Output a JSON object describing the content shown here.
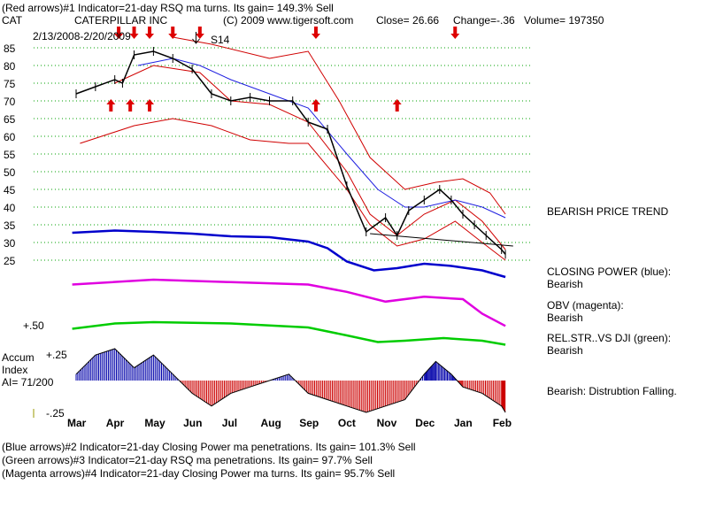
{
  "header": {
    "line1": "(Red arrows)#1 Indicator=21-day RSQ ma turns. Its gain= 149.3% Sell",
    "ticker": "CAT",
    "company": "CATERPILLAR INC",
    "copyright": "(C) 2009 www.tigersoft.com",
    "close": "Close=  26.66",
    "change": "Change=-.36",
    "volume": "Volume= 197350",
    "date_range": "2/13/2008-2/20/2009",
    "signal": "S14"
  },
  "annotations": {
    "trend": "BEARISH PRICE TREND",
    "cp_title": "CLOSING POWER (blue):",
    "cp_value": "Bearish",
    "obv_title": "OBV (magenta):",
    "obv_value": "Bearish",
    "rs_title": "REL.STR..VS DJI (green):",
    "rs_value": "Bearish",
    "accum_note": "Bearish:  Distrubtion Falling.",
    "plus50": "+.50",
    "accum_title": "Accum",
    "accum_index": "Index",
    "ai": "AI= 71/200",
    "plus25": "+.25",
    "minus25": "-.25"
  },
  "footer": {
    "line2": "(Blue arrows)#2 Indicator=21-day Closing Power ma penetrations. Its gain= 101.3% Sell",
    "line3": "(Green arrows)#3 Indicator=21-day RSQ ma penetrations. Its gain= 97.7% Sell",
    "line4": "(Magenta arrows)#4 Indicator=21-day Closing Power ma turns. Its gain= 95.7% Sell"
  },
  "colors": {
    "price": "#000000",
    "ma": "#2020e0",
    "band": "#d00000",
    "closing_power": "#0000cc",
    "obv": "#e000e0",
    "rel_strength": "#00cc00",
    "accum_pos": "#0000aa",
    "accum_neg": "#cc0000",
    "arrow": "#dd0000",
    "grid": "#00a000"
  },
  "chart_data": {
    "type": "line",
    "y_ticks": [
      85,
      80,
      75,
      70,
      65,
      60,
      55,
      50,
      45,
      40,
      35,
      30,
      25
    ],
    "ylim": [
      25,
      85
    ],
    "months": [
      "Mar",
      "Apr",
      "May",
      "Jun",
      "Jul",
      "Aug",
      "Sep",
      "Oct",
      "Nov",
      "Dec",
      "Jan",
      "Feb"
    ],
    "price_close": [
      {
        "m": 0.0,
        "v": 72
      },
      {
        "m": 0.5,
        "v": 74
      },
      {
        "m": 1.0,
        "v": 76
      },
      {
        "m": 1.2,
        "v": 75
      },
      {
        "m": 1.5,
        "v": 83
      },
      {
        "m": 2.0,
        "v": 84
      },
      {
        "m": 2.5,
        "v": 82
      },
      {
        "m": 3.0,
        "v": 79
      },
      {
        "m": 3.5,
        "v": 72
      },
      {
        "m": 4.0,
        "v": 70
      },
      {
        "m": 4.5,
        "v": 71
      },
      {
        "m": 5.0,
        "v": 70
      },
      {
        "m": 5.6,
        "v": 70
      },
      {
        "m": 6.0,
        "v": 64
      },
      {
        "m": 6.5,
        "v": 62
      },
      {
        "m": 7.0,
        "v": 46
      },
      {
        "m": 7.5,
        "v": 33
      },
      {
        "m": 8.0,
        "v": 37
      },
      {
        "m": 8.3,
        "v": 32
      },
      {
        "m": 8.6,
        "v": 39
      },
      {
        "m": 9.0,
        "v": 42
      },
      {
        "m": 9.4,
        "v": 45
      },
      {
        "m": 9.7,
        "v": 42
      },
      {
        "m": 10.0,
        "v": 38
      },
      {
        "m": 10.3,
        "v": 35
      },
      {
        "m": 10.6,
        "v": 32
      },
      {
        "m": 11.0,
        "v": 28
      },
      {
        "m": 11.1,
        "v": 26.66
      }
    ],
    "ma_21": [
      {
        "m": 1.6,
        "v": 80
      },
      {
        "m": 2.5,
        "v": 82
      },
      {
        "m": 3.2,
        "v": 80
      },
      {
        "m": 4.0,
        "v": 76
      },
      {
        "m": 5.0,
        "v": 72
      },
      {
        "m": 6.0,
        "v": 68
      },
      {
        "m": 7.0,
        "v": 55
      },
      {
        "m": 7.8,
        "v": 45
      },
      {
        "m": 8.5,
        "v": 40
      },
      {
        "m": 9.0,
        "v": 40
      },
      {
        "m": 9.8,
        "v": 42
      },
      {
        "m": 10.5,
        "v": 40
      },
      {
        "m": 11.1,
        "v": 37
      }
    ],
    "upper_band": [
      {
        "m": 2.5,
        "v": 88
      },
      {
        "m": 3.5,
        "v": 86
      },
      {
        "m": 5.0,
        "v": 82
      },
      {
        "m": 6.0,
        "v": 84
      },
      {
        "m": 6.8,
        "v": 70
      },
      {
        "m": 7.6,
        "v": 54
      },
      {
        "m": 8.5,
        "v": 45
      },
      {
        "m": 9.3,
        "v": 47
      },
      {
        "m": 10.0,
        "v": 48
      },
      {
        "m": 10.7,
        "v": 44
      },
      {
        "m": 11.1,
        "v": 38
      }
    ],
    "lower_band": [
      {
        "m": 0.1,
        "v": 58
      },
      {
        "m": 1.5,
        "v": 63
      },
      {
        "m": 2.5,
        "v": 65
      },
      {
        "m": 3.5,
        "v": 63
      },
      {
        "m": 4.5,
        "v": 59
      },
      {
        "m": 5.5,
        "v": 58
      },
      {
        "m": 6.0,
        "v": 58
      },
      {
        "m": 7.0,
        "v": 45
      },
      {
        "m": 7.6,
        "v": 35
      },
      {
        "m": 8.3,
        "v": 29
      },
      {
        "m": 9.0,
        "v": 31
      },
      {
        "m": 9.8,
        "v": 36
      },
      {
        "m": 10.5,
        "v": 30
      },
      {
        "m": 11.1,
        "v": 25
      }
    ],
    "inner_band": [
      {
        "m": 1.0,
        "v": 75
      },
      {
        "m": 2.0,
        "v": 80
      },
      {
        "m": 3.2,
        "v": 78
      },
      {
        "m": 4.0,
        "v": 70
      },
      {
        "m": 5.0,
        "v": 69
      },
      {
        "m": 6.0,
        "v": 64
      },
      {
        "m": 7.0,
        "v": 50
      },
      {
        "m": 7.6,
        "v": 38
      },
      {
        "m": 8.3,
        "v": 32
      },
      {
        "m": 9.0,
        "v": 38
      },
      {
        "m": 9.8,
        "v": 42
      },
      {
        "m": 10.5,
        "v": 36
      },
      {
        "m": 11.1,
        "v": 28
      }
    ],
    "trend_line": [
      {
        "m": 7.6,
        "v": 32.5
      },
      {
        "m": 11.3,
        "v": 29
      }
    ],
    "closing_power": [
      {
        "m": -0.1,
        "v": 0.9
      },
      {
        "m": 1.0,
        "v": 0.95
      },
      {
        "m": 2.0,
        "v": 0.92
      },
      {
        "m": 3.0,
        "v": 0.88
      },
      {
        "m": 4.0,
        "v": 0.82
      },
      {
        "m": 5.0,
        "v": 0.8
      },
      {
        "m": 6.0,
        "v": 0.7
      },
      {
        "m": 6.5,
        "v": 0.55
      },
      {
        "m": 7.0,
        "v": 0.25
      },
      {
        "m": 7.7,
        "v": 0.05
      },
      {
        "m": 8.3,
        "v": 0.1
      },
      {
        "m": 9.0,
        "v": 0.2
      },
      {
        "m": 9.7,
        "v": 0.15
      },
      {
        "m": 10.5,
        "v": 0.05
      },
      {
        "m": 11.1,
        "v": -0.1
      }
    ],
    "obv": [
      {
        "m": -0.1,
        "v": 0.3
      },
      {
        "m": 2.0,
        "v": 0.4
      },
      {
        "m": 4.0,
        "v": 0.35
      },
      {
        "m": 6.0,
        "v": 0.3
      },
      {
        "m": 7.0,
        "v": 0.15
      },
      {
        "m": 8.0,
        "v": -0.05
      },
      {
        "m": 9.0,
        "v": 0.05
      },
      {
        "m": 10.0,
        "v": 0.0
      },
      {
        "m": 10.5,
        "v": -0.3
      },
      {
        "m": 11.1,
        "v": -0.55
      }
    ],
    "rel_strength": [
      {
        "m": -0.1,
        "v": 0.0
      },
      {
        "m": 1.0,
        "v": 0.2
      },
      {
        "m": 2.0,
        "v": 0.25
      },
      {
        "m": 4.0,
        "v": 0.2
      },
      {
        "m": 6.0,
        "v": 0.05
      },
      {
        "m": 7.0,
        "v": -0.25
      },
      {
        "m": 7.8,
        "v": -0.5
      },
      {
        "m": 8.5,
        "v": -0.45
      },
      {
        "m": 9.5,
        "v": -0.35
      },
      {
        "m": 10.5,
        "v": -0.45
      },
      {
        "m": 11.1,
        "v": -0.6
      }
    ],
    "accum_index": [
      {
        "m": 0.0,
        "v": 0.05
      },
      {
        "m": 0.5,
        "v": 0.2
      },
      {
        "m": 1.0,
        "v": 0.25
      },
      {
        "m": 1.5,
        "v": 0.1
      },
      {
        "m": 2.0,
        "v": 0.2
      },
      {
        "m": 2.5,
        "v": 0.05
      },
      {
        "m": 3.0,
        "v": -0.1
      },
      {
        "m": 3.5,
        "v": -0.2
      },
      {
        "m": 4.0,
        "v": -0.1
      },
      {
        "m": 4.5,
        "v": -0.05
      },
      {
        "m": 5.0,
        "v": 0.0
      },
      {
        "m": 5.5,
        "v": 0.05
      },
      {
        "m": 6.0,
        "v": -0.1
      },
      {
        "m": 6.5,
        "v": -0.15
      },
      {
        "m": 7.0,
        "v": -0.2
      },
      {
        "m": 7.5,
        "v": -0.25
      },
      {
        "m": 8.0,
        "v": -0.2
      },
      {
        "m": 8.5,
        "v": -0.15
      },
      {
        "m": 9.0,
        "v": 0.05
      },
      {
        "m": 9.3,
        "v": 0.15
      },
      {
        "m": 9.7,
        "v": 0.05
      },
      {
        "m": 10.0,
        "v": -0.05
      },
      {
        "m": 10.5,
        "v": -0.1
      },
      {
        "m": 11.0,
        "v": -0.2
      },
      {
        "m": 11.1,
        "v": -0.25
      }
    ],
    "red_arrows_up": [
      0.9,
      1.4,
      1.9,
      6.2,
      8.3
    ],
    "red_arrows_down": [
      1.1,
      1.5,
      1.9,
      2.5,
      3.2,
      6.2,
      9.8
    ],
    "signal_at": 3.1
  }
}
